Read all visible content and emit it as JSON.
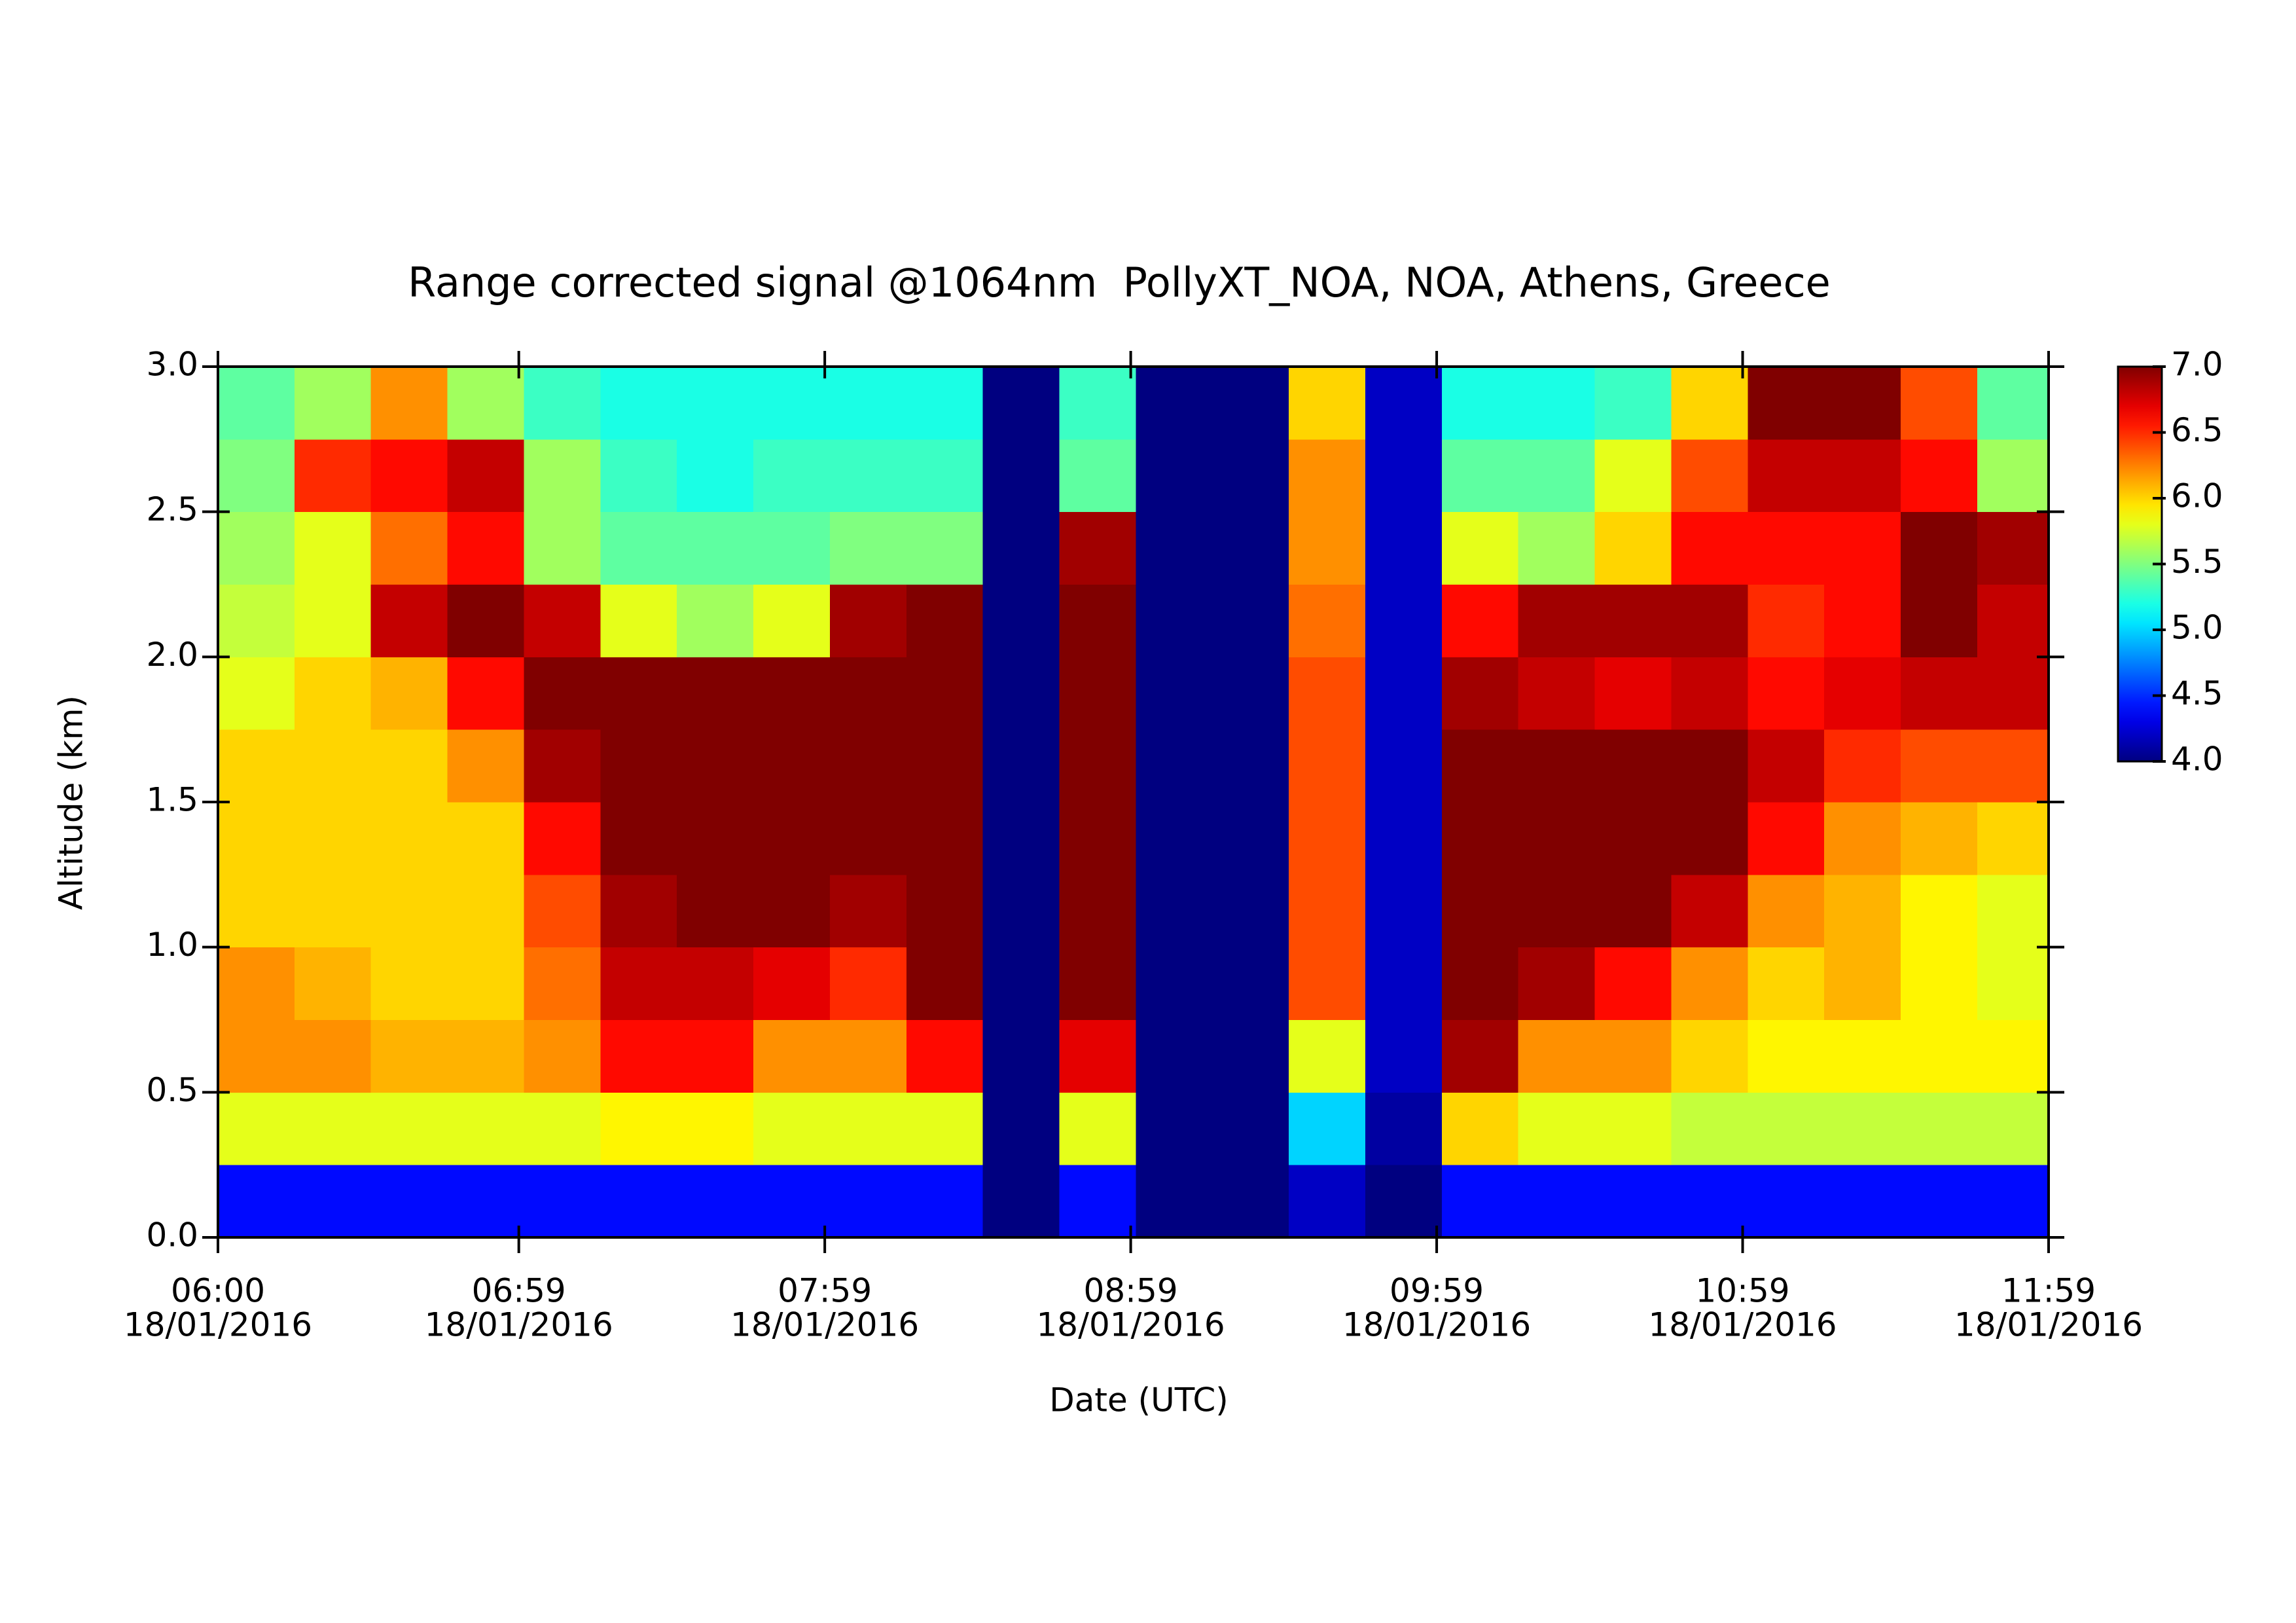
{
  "chart_data": {
    "type": "heatmap",
    "title": "Range corrected signal @1064nm  PollyXT_NOA, NOA, Athens, Greece",
    "x_label": "Date (UTC)",
    "y_label": "Altitude (km)",
    "x": [
      "06:00",
      "06:15",
      "06:30",
      "06:45",
      "07:00",
      "07:15",
      "07:30",
      "07:45",
      "08:00",
      "08:15",
      "08:30",
      "08:45",
      "09:00",
      "09:15",
      "09:30",
      "09:45",
      "10:00",
      "10:15",
      "10:30",
      "10:45",
      "11:00",
      "11:15",
      "11:30",
      "11:45"
    ],
    "y": [
      0,
      0.25,
      0.5,
      0.75,
      1,
      1.25,
      1.5,
      1.75,
      2,
      2.25,
      2.5,
      2.75
    ],
    "values": [
      [
        4.4,
        5.8,
        6.2,
        6.2,
        6.0,
        6.0,
        6.0,
        5.8,
        5.7,
        5.6,
        5.5,
        5.4
      ],
      [
        4.4,
        5.8,
        6.2,
        6.1,
        6.0,
        6.0,
        6.0,
        6.0,
        5.8,
        5.8,
        6.5,
        5.6
      ],
      [
        4.4,
        5.8,
        6.1,
        6.0,
        6.0,
        6.0,
        6.0,
        6.1,
        6.8,
        6.3,
        6.6,
        6.2
      ],
      [
        4.4,
        5.8,
        6.1,
        6.0,
        6.0,
        6.0,
        6.2,
        6.6,
        7.0,
        6.6,
        6.8,
        5.6
      ],
      [
        4.4,
        5.8,
        6.2,
        6.3,
        6.4,
        6.6,
        6.9,
        7.0,
        6.8,
        5.6,
        5.6,
        5.3
      ],
      [
        4.4,
        5.9,
        6.6,
        6.8,
        6.9,
        7.0,
        7.0,
        7.0,
        5.8,
        5.4,
        5.3,
        5.2
      ],
      [
        4.4,
        5.9,
        6.6,
        6.8,
        7.0,
        7.0,
        7.0,
        7.0,
        5.6,
        5.4,
        5.2,
        5.2
      ],
      [
        4.4,
        5.8,
        6.2,
        6.7,
        7.0,
        7.0,
        7.0,
        7.0,
        5.8,
        5.4,
        5.3,
        5.2
      ],
      [
        4.4,
        5.8,
        6.2,
        6.5,
        6.9,
        7.0,
        7.0,
        7.0,
        6.9,
        5.5,
        5.3,
        5.2
      ],
      [
        4.4,
        5.8,
        6.6,
        7.0,
        7.0,
        7.0,
        7.0,
        7.0,
        7.0,
        5.5,
        5.3,
        5.2
      ],
      [
        4.0,
        4.0,
        4.0,
        4.0,
        4.0,
        4.0,
        4.0,
        4.0,
        4.0,
        4.0,
        4.0,
        4.0
      ],
      [
        4.4,
        5.8,
        6.7,
        7.0,
        7.0,
        7.0,
        7.0,
        7.0,
        7.0,
        6.9,
        5.4,
        5.3
      ],
      [
        4.0,
        4.0,
        4.0,
        4.0,
        4.0,
        4.0,
        4.0,
        4.0,
        4.0,
        4.0,
        4.0,
        4.0
      ],
      [
        4.0,
        4.0,
        4.0,
        4.0,
        4.0,
        4.0,
        4.0,
        4.0,
        4.0,
        4.0,
        4.0,
        4.0
      ],
      [
        4.2,
        5.0,
        5.8,
        6.4,
        6.4,
        6.4,
        6.4,
        6.4,
        6.3,
        6.2,
        6.2,
        6.0
      ],
      [
        4.0,
        4.1,
        4.2,
        4.2,
        4.2,
        4.2,
        4.2,
        4.2,
        4.2,
        4.2,
        4.2,
        4.2
      ],
      [
        4.4,
        6.0,
        6.9,
        7.0,
        7.0,
        7.0,
        7.0,
        6.9,
        6.6,
        5.8,
        5.4,
        5.2
      ],
      [
        4.4,
        5.8,
        6.2,
        6.9,
        7.0,
        7.0,
        7.0,
        6.8,
        6.9,
        5.6,
        5.4,
        5.2
      ],
      [
        4.4,
        5.8,
        6.2,
        6.6,
        7.0,
        7.0,
        7.0,
        6.7,
        6.9,
        6.0,
        5.8,
        5.3
      ],
      [
        4.4,
        5.7,
        6.0,
        6.2,
        6.8,
        7.0,
        7.0,
        6.8,
        6.9,
        6.6,
        6.4,
        6.0
      ],
      [
        4.4,
        5.7,
        5.9,
        6.0,
        6.2,
        6.6,
        6.8,
        6.6,
        6.5,
        6.6,
        6.8,
        7.0
      ],
      [
        4.4,
        5.7,
        5.9,
        6.1,
        6.1,
        6.2,
        6.5,
        6.7,
        6.6,
        6.6,
        6.8,
        7.0
      ],
      [
        4.4,
        5.7,
        5.9,
        5.9,
        5.9,
        6.1,
        6.4,
        6.8,
        7.0,
        7.0,
        6.6,
        6.4
      ],
      [
        4.4,
        5.7,
        5.9,
        5.8,
        5.8,
        6.0,
        6.4,
        6.8,
        6.8,
        6.9,
        5.6,
        5.4
      ]
    ],
    "xlim": [
      "06:00",
      "11:59"
    ],
    "xticks": [
      {
        "value": "06:00",
        "label": [
          "06:00",
          "18/01/2016"
        ]
      },
      {
        "value": "06:59",
        "label": [
          "06:59",
          "18/01/2016"
        ]
      },
      {
        "value": "07:59",
        "label": [
          "07:59",
          "18/01/2016"
        ]
      },
      {
        "value": "08:59",
        "label": [
          "08:59",
          "18/01/2016"
        ]
      },
      {
        "value": "09:59",
        "label": [
          "09:59",
          "18/01/2016"
        ]
      },
      {
        "value": "10:59",
        "label": [
          "10:59",
          "18/01/2016"
        ]
      },
      {
        "value": "11:59",
        "label": [
          "11:59",
          "18/01/2016"
        ]
      }
    ],
    "ylim": [
      0,
      3
    ],
    "yticks": [
      {
        "value": 0,
        "label": "0.0"
      },
      0.5,
      {
        "value": 1,
        "label": "1.0"
      },
      1.5,
      {
        "value": 2,
        "label": "2.0"
      },
      2.5,
      {
        "value": 3,
        "label": "3.0"
      }
    ],
    "zlim": [
      4,
      7
    ],
    "zticks": [
      {
        "value": 4,
        "label": "4.0"
      },
      4.5,
      {
        "value": 5,
        "label": "5.0"
      },
      5.5,
      {
        "value": 6,
        "label": "6.0"
      },
      6.5,
      {
        "value": 7,
        "label": "7.0"
      }
    ],
    "colormap": "jet"
  }
}
